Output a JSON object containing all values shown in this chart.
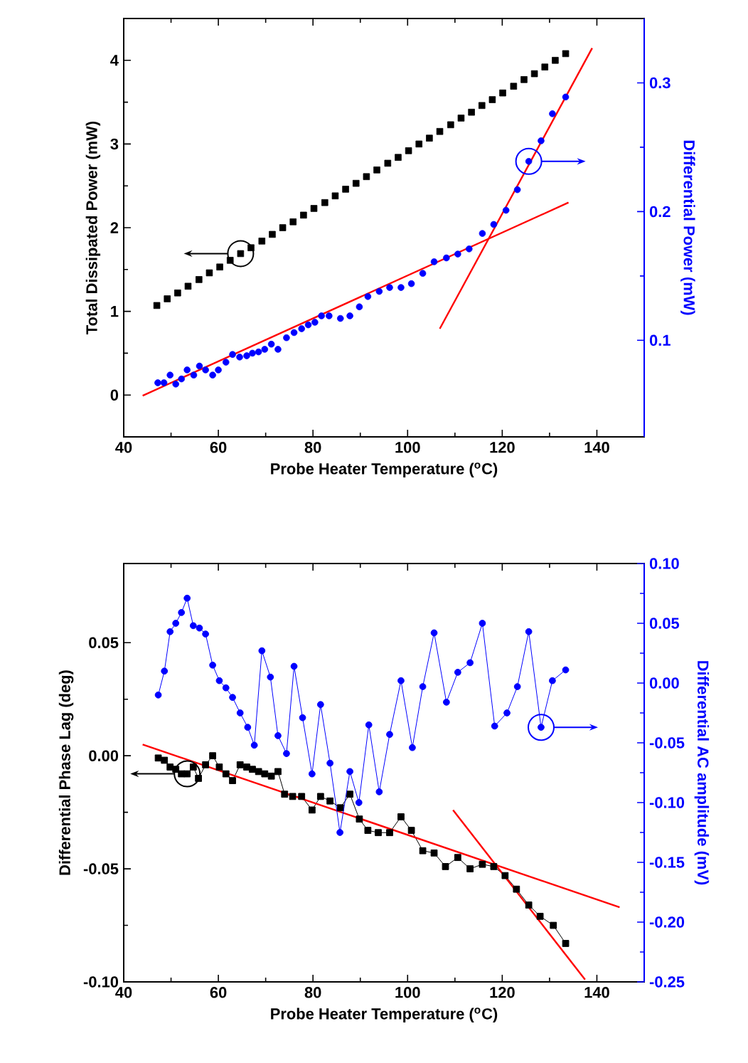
{
  "chart_data": [
    {
      "type": "scatter",
      "xlabel": "Probe Heater Temperature ($^{o}$C)",
      "ylabel": "Total Dissipated Power (mW)",
      "y2label": "Differential Power (mW)",
      "xlim": [
        40,
        150
      ],
      "xticks": [
        40,
        60,
        80,
        100,
        120,
        140
      ],
      "ylim": [
        -0.5,
        4.5
      ],
      "yticks": [
        0,
        1,
        2,
        3,
        4
      ],
      "y2lim": [
        0.025,
        0.35
      ],
      "y2ticks": [
        0.1,
        0.2,
        0.3
      ],
      "series": [
        {
          "color": "#000000",
          "marker": "square",
          "x": [
            47.0,
            49.2,
            51.4,
            53.6,
            55.9,
            58.1,
            60.3,
            62.5,
            64.7,
            66.9,
            69.2,
            71.4,
            73.6,
            75.8,
            78.0,
            80.2,
            82.5,
            84.7,
            86.9,
            89.1,
            91.3,
            93.5,
            95.8,
            98.0,
            100.2,
            102.4,
            104.6,
            106.8,
            109.1,
            111.3,
            113.5,
            115.7,
            117.9,
            120.1,
            122.4,
            124.6,
            126.8,
            129.0,
            131.2,
            133.4
          ],
          "values": [
            1.07,
            1.15,
            1.22,
            1.3,
            1.38,
            1.46,
            1.53,
            1.61,
            1.69,
            1.76,
            1.84,
            1.92,
            2.0,
            2.07,
            2.15,
            2.23,
            2.3,
            2.38,
            2.46,
            2.53,
            2.61,
            2.69,
            2.77,
            2.84,
            2.92,
            3.0,
            3.07,
            3.15,
            3.23,
            3.31,
            3.38,
            3.46,
            3.53,
            3.61,
            3.69,
            3.77,
            3.84,
            3.92,
            4.0,
            4.08
          ]
        },
        {
          "color": "#0000ff",
          "marker": "circle",
          "axis": "y2",
          "x": [
            47.2,
            48.5,
            49.8,
            51.0,
            52.2,
            53.4,
            54.8,
            56.0,
            57.3,
            58.8,
            60.0,
            61.6,
            63.0,
            64.5,
            66.0,
            67.2,
            68.5,
            69.8,
            71.2,
            72.6,
            74.4,
            76.0,
            77.6,
            79.0,
            80.4,
            81.8,
            83.4,
            85.8,
            87.8,
            89.8,
            91.6,
            94.0,
            96.2,
            98.6,
            100.8,
            103.2,
            105.6,
            108.2,
            110.6,
            113.0,
            115.8,
            118.2,
            120.8,
            123.2,
            125.6,
            128.2,
            130.6,
            133.4
          ],
          "values": [
            0.067,
            0.067,
            0.073,
            0.066,
            0.07,
            0.077,
            0.073,
            0.08,
            0.077,
            0.073,
            0.077,
            0.083,
            0.089,
            0.087,
            0.088,
            0.09,
            0.091,
            0.093,
            0.097,
            0.093,
            0.102,
            0.106,
            0.109,
            0.112,
            0.114,
            0.119,
            0.119,
            0.117,
            0.119,
            0.126,
            0.134,
            0.138,
            0.141,
            0.141,
            0.144,
            0.152,
            0.161,
            0.164,
            0.167,
            0.171,
            0.183,
            0.19,
            0.201,
            0.217,
            0.239,
            0.255,
            0.276,
            0.289
          ]
        },
        {
          "type": "line",
          "color": "#ff0000",
          "marker": "none",
          "axis": "y2",
          "x": [
            44,
            134
          ],
          "values": [
            0.057,
            0.207
          ]
        },
        {
          "type": "line",
          "color": "#ff0000",
          "marker": "none",
          "axis": "y2",
          "x": [
            106.8,
            139
          ],
          "values": [
            0.109,
            0.327
          ]
        }
      ]
    },
    {
      "type": "line",
      "xlabel": "Probe Heater Temperature ($^{o}$C)",
      "ylabel": "Differential Phase Lag (deg)",
      "y2label": "Differential AC amplitude (mV)",
      "xlim": [
        40,
        150
      ],
      "xticks": [
        40,
        60,
        80,
        100,
        120,
        140
      ],
      "ylim": [
        -0.1,
        0.085
      ],
      "yticks": [
        {
          "value": -0.1,
          "label": "-0.10"
        },
        -0.05,
        {
          "value": 0,
          "label": "0.00"
        },
        0.05
      ],
      "y2lim": [
        -0.25,
        0.1
      ],
      "y2ticks": [
        -0.25,
        {
          "value": -0.2,
          "label": "-0.20"
        },
        -0.15,
        {
          "value": -0.1,
          "label": "-0.10"
        },
        -0.05,
        {
          "value": 0,
          "label": "0.00"
        },
        0.05,
        {
          "value": 0.1,
          "label": "0.10"
        }
      ],
      "series": [
        {
          "color": "#000000",
          "marker": "square",
          "x": [
            47.3,
            48.6,
            49.8,
            51.0,
            52.2,
            53.4,
            54.7,
            55.8,
            57.3,
            58.8,
            60.2,
            61.6,
            63.0,
            64.6,
            66.0,
            67.2,
            68.5,
            69.8,
            71.2,
            72.6,
            74.0,
            75.7,
            77.6,
            79.8,
            81.6,
            83.6,
            85.8,
            87.8,
            89.8,
            91.6,
            93.8,
            96.2,
            98.6,
            100.8,
            103.2,
            105.6,
            108.0,
            110.6,
            113.2,
            115.8,
            118.2,
            120.6,
            123.0,
            125.6,
            128.0,
            130.8,
            133.4
          ],
          "values": [
            -0.001,
            -0.002,
            -0.005,
            -0.006,
            -0.008,
            -0.008,
            -0.005,
            -0.01,
            -0.004,
            0.0,
            -0.005,
            -0.008,
            -0.011,
            -0.004,
            -0.005,
            -0.006,
            -0.007,
            -0.008,
            -0.009,
            -0.007,
            -0.017,
            -0.018,
            -0.018,
            -0.024,
            -0.018,
            -0.02,
            -0.023,
            -0.017,
            -0.028,
            -0.033,
            -0.034,
            -0.034,
            -0.027,
            -0.033,
            -0.042,
            -0.043,
            -0.049,
            -0.045,
            -0.05,
            -0.048,
            -0.049,
            -0.053,
            -0.059,
            -0.066,
            -0.071,
            -0.075,
            -0.083
          ]
        },
        {
          "color": "#0000ff",
          "marker": "circle",
          "axis": "y2",
          "x": [
            47.3,
            48.6,
            49.8,
            51.0,
            52.2,
            53.4,
            54.7,
            56.0,
            57.3,
            58.8,
            60.2,
            61.6,
            63.0,
            64.6,
            66.2,
            67.6,
            69.2,
            71.0,
            72.6,
            74.4,
            76.0,
            77.8,
            79.8,
            81.6,
            83.6,
            85.7,
            87.8,
            89.7,
            91.8,
            94.0,
            96.2,
            98.6,
            101.0,
            103.2,
            105.6,
            108.2,
            110.6,
            113.2,
            115.8,
            118.4,
            121.0,
            123.2,
            125.6,
            128.2,
            130.6,
            133.4
          ],
          "values": [
            -0.01,
            0.01,
            0.043,
            0.05,
            0.059,
            0.071,
            0.048,
            0.046,
            0.041,
            0.015,
            0.002,
            -0.004,
            -0.012,
            -0.025,
            -0.037,
            -0.052,
            0.027,
            0.005,
            -0.044,
            -0.059,
            0.014,
            -0.029,
            -0.076,
            -0.018,
            -0.067,
            -0.125,
            -0.074,
            -0.1,
            -0.035,
            -0.091,
            -0.043,
            0.002,
            -0.054,
            -0.003,
            0.042,
            -0.016,
            0.009,
            0.017,
            0.05,
            -0.036,
            -0.025,
            -0.003,
            0.043,
            -0.037,
            0.002,
            0.011
          ]
        },
        {
          "color": "#ff0000",
          "marker": "none",
          "x": [
            44,
            144.8
          ],
          "values": [
            0.005,
            -0.067
          ]
        },
        {
          "color": "#ff0000",
          "marker": "none",
          "x": [
            109.6,
            137.5
          ],
          "values": [
            -0.024,
            -0.099
          ]
        }
      ]
    }
  ]
}
